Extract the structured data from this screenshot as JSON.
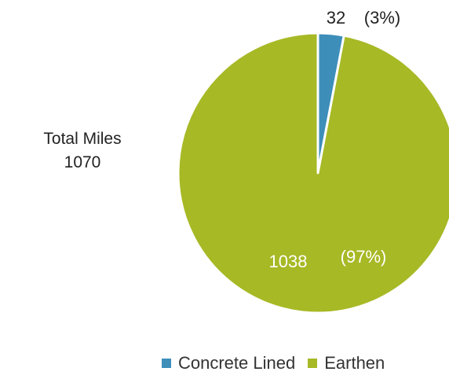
{
  "total": {
    "label": "Total Miles",
    "value": "1070"
  },
  "chart_data": {
    "type": "pie",
    "title": "",
    "slices": [
      {
        "name": "Concrete Lined",
        "value": 32,
        "value_label": "32",
        "percent_label": "(3%)",
        "color": "#3E8EBA"
      },
      {
        "name": "Earthen",
        "value": 1038,
        "value_label": "1038",
        "percent_label": "(97%)",
        "color": "#A7B925"
      }
    ],
    "legend_position": "bottom-right"
  }
}
